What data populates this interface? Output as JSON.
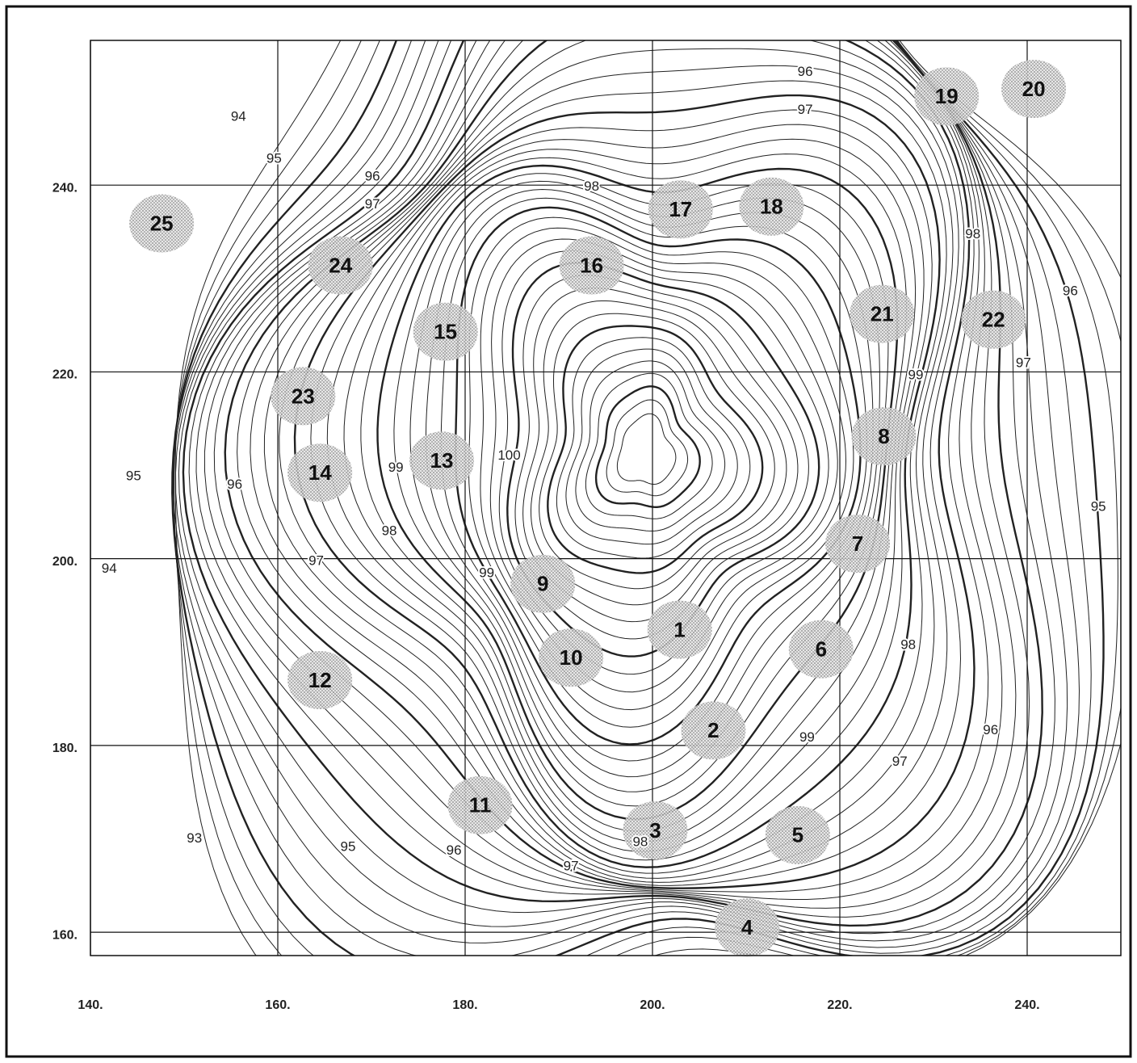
{
  "map": {
    "xlim": [
      140,
      250
    ],
    "ylim": [
      157.5,
      255.5
    ],
    "xticks": [
      {
        "value": 140,
        "label": "140."
      },
      {
        "value": 160,
        "label": "160."
      },
      {
        "value": 180,
        "label": "180."
      },
      {
        "value": 200,
        "label": "200."
      },
      {
        "value": 220,
        "label": "220."
      },
      {
        "value": 240,
        "label": "240."
      }
    ],
    "yticks": [
      {
        "value": 160,
        "label": "160."
      },
      {
        "value": 180,
        "label": "180."
      },
      {
        "value": 200,
        "label": "200."
      },
      {
        "value": 220,
        "label": "220."
      },
      {
        "value": 240,
        "label": "240."
      }
    ],
    "grid": true,
    "sites": [
      {
        "label": "1",
        "x": 202.9,
        "y": 192.4
      },
      {
        "label": "2",
        "x": 206.5,
        "y": 181.6
      },
      {
        "label": "3",
        "x": 200.3,
        "y": 170.9
      },
      {
        "label": "4",
        "x": 210.1,
        "y": 160.5
      },
      {
        "label": "5",
        "x": 215.5,
        "y": 170.4
      },
      {
        "label": "6",
        "x": 218,
        "y": 190.3
      },
      {
        "label": "7",
        "x": 221.9,
        "y": 201.6
      },
      {
        "label": "8",
        "x": 224.7,
        "y": 213.1
      },
      {
        "label": "9",
        "x": 188.3,
        "y": 197.3
      },
      {
        "label": "10",
        "x": 191.3,
        "y": 189.4
      },
      {
        "label": "11",
        "x": 181.6,
        "y": 173.6
      },
      {
        "label": "12",
        "x": 164.5,
        "y": 187
      },
      {
        "label": "13",
        "x": 177.5,
        "y": 210.5
      },
      {
        "label": "14",
        "x": 164.5,
        "y": 209.2
      },
      {
        "label": "15",
        "x": 177.9,
        "y": 224.3
      },
      {
        "label": "16",
        "x": 193.5,
        "y": 231.4
      },
      {
        "label": "17",
        "x": 203,
        "y": 237.4
      },
      {
        "label": "18",
        "x": 212.7,
        "y": 237.7
      },
      {
        "label": "19",
        "x": 231.4,
        "y": 249.5
      },
      {
        "label": "20",
        "x": 240.7,
        "y": 250.3
      },
      {
        "label": "21",
        "x": 224.5,
        "y": 226.2
      },
      {
        "label": "22",
        "x": 236.4,
        "y": 225.6
      },
      {
        "label": "23",
        "x": 162.7,
        "y": 217.4
      },
      {
        "label": "24",
        "x": 166.7,
        "y": 231.4
      },
      {
        "label": "25",
        "x": 147.6,
        "y": 235.9
      }
    ],
    "contour_labels": [
      {
        "value": 96,
        "x": 216.3,
        "y": 252.1
      },
      {
        "value": 97,
        "x": 216.3,
        "y": 248
      },
      {
        "value": 94,
        "x": 155.8,
        "y": 247.3
      },
      {
        "value": 95,
        "x": 159.6,
        "y": 242.8
      },
      {
        "value": 96,
        "x": 170.1,
        "y": 240.9
      },
      {
        "value": 97,
        "x": 170.1,
        "y": 237.9
      },
      {
        "value": 98,
        "x": 193.5,
        "y": 239.8
      },
      {
        "value": 100,
        "x": 184.7,
        "y": 211
      },
      {
        "value": 99,
        "x": 172.6,
        "y": 209.7
      },
      {
        "value": 98,
        "x": 171.9,
        "y": 202.9
      },
      {
        "value": 97,
        "x": 164.1,
        "y": 199.7
      },
      {
        "value": 96,
        "x": 155.4,
        "y": 207.9
      },
      {
        "value": 95,
        "x": 144.6,
        "y": 208.8
      },
      {
        "value": 94,
        "x": 142,
        "y": 198.9
      },
      {
        "value": 93,
        "x": 151.1,
        "y": 170
      },
      {
        "value": 95,
        "x": 167.5,
        "y": 169.1
      },
      {
        "value": 96,
        "x": 178.8,
        "y": 168.7
      },
      {
        "value": 97,
        "x": 191.3,
        "y": 167
      },
      {
        "value": 99,
        "x": 182.3,
        "y": 198.4
      },
      {
        "value": 98,
        "x": 227.3,
        "y": 190.7
      },
      {
        "value": 97,
        "x": 226.4,
        "y": 178.2
      },
      {
        "value": 96,
        "x": 236.1,
        "y": 181.6
      },
      {
        "value": 95,
        "x": 247.6,
        "y": 205.5
      },
      {
        "value": 96,
        "x": 244.6,
        "y": 228.6
      },
      {
        "value": 97,
        "x": 239.6,
        "y": 220.9
      },
      {
        "value": 98,
        "x": 234.2,
        "y": 234.7
      },
      {
        "value": 99,
        "x": 228.1,
        "y": 219.6
      },
      {
        "value": 99,
        "x": 216.5,
        "y": 180.8
      },
      {
        "value": 98,
        "x": 198.7,
        "y": 169.6
      }
    ]
  }
}
